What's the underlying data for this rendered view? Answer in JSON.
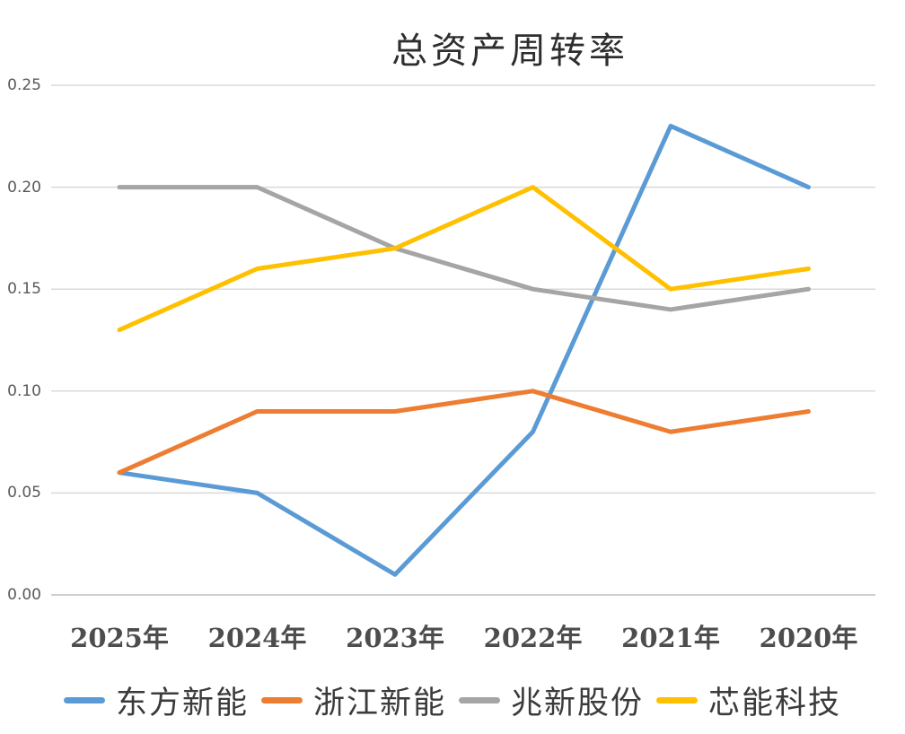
{
  "chart_data": {
    "type": "line",
    "title": "总资产周转率",
    "categories": [
      "2025年",
      "2024年",
      "2023年",
      "2022年",
      "2021年",
      "2020年"
    ],
    "series": [
      {
        "name": "东方新能",
        "color": "#5B9BD5",
        "values": [
          0.06,
          0.05,
          0.01,
          0.08,
          0.23,
          0.2
        ]
      },
      {
        "name": "浙江新能",
        "color": "#ED7D31",
        "values": [
          0.06,
          0.09,
          0.09,
          0.1,
          0.08,
          0.09
        ]
      },
      {
        "name": "兆新股份",
        "color": "#A5A5A5",
        "values": [
          0.2,
          0.2,
          0.17,
          0.15,
          0.14,
          0.15
        ]
      },
      {
        "name": "芯能科技",
        "color": "#FFC000",
        "values": [
          0.13,
          0.16,
          0.17,
          0.2,
          0.15,
          0.16
        ]
      }
    ],
    "ylim": [
      0,
      0.25
    ],
    "yticks": [
      0.0,
      0.05,
      0.1,
      0.15,
      0.2,
      0.25
    ],
    "ytick_labels": [
      "0.00",
      "0.05",
      "0.10",
      "0.15",
      "0.20",
      "0.25"
    ],
    "grid": "horizontal-only",
    "legend_position": "bottom"
  },
  "colors": {
    "background": "#FFFFFF",
    "gridline": "#D9D9D9",
    "baseline": "#BFBFBF",
    "ytick_text": "#595959",
    "xlabel_text": "#4D4D4D",
    "title_text": "#2E2E2E",
    "legend_text": "#3B3B3B"
  }
}
